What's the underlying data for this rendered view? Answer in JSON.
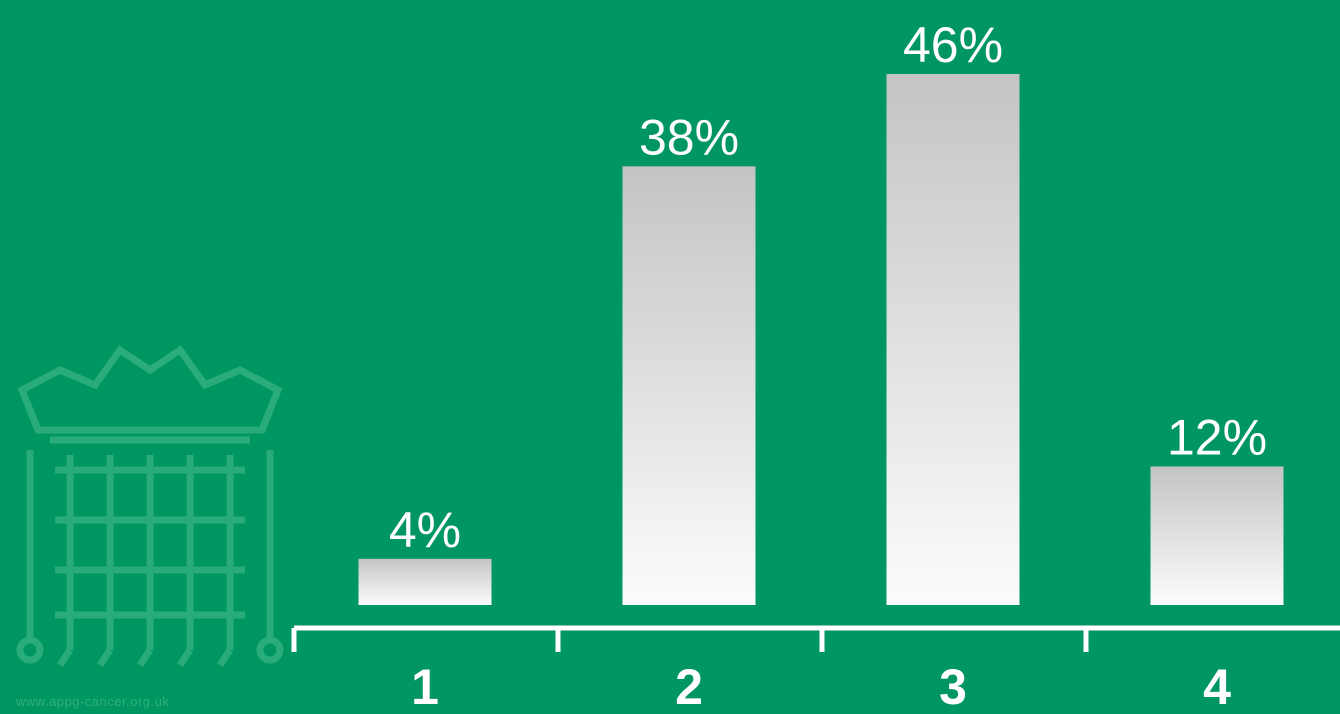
{
  "colors": {
    "background": "#009661",
    "bar_top": "#c4c4c4",
    "bar_bottom": "#fcfcfc",
    "axis": "#ffffff",
    "text": "#ffffff",
    "watermark": "#2fae7e"
  },
  "watermark": {
    "icon": "portcullis-crown-icon",
    "text": "www.appg-cancer.org.uk"
  },
  "chart_data": {
    "type": "bar",
    "categories": [
      "1",
      "2",
      "3",
      "4"
    ],
    "values": [
      4,
      38,
      46,
      12
    ],
    "value_labels": [
      "4%",
      "38%",
      "46%",
      "12%"
    ],
    "title": "",
    "xlabel": "",
    "ylabel": "",
    "ylim": [
      0,
      46
    ],
    "grid": false,
    "legend": "none"
  }
}
